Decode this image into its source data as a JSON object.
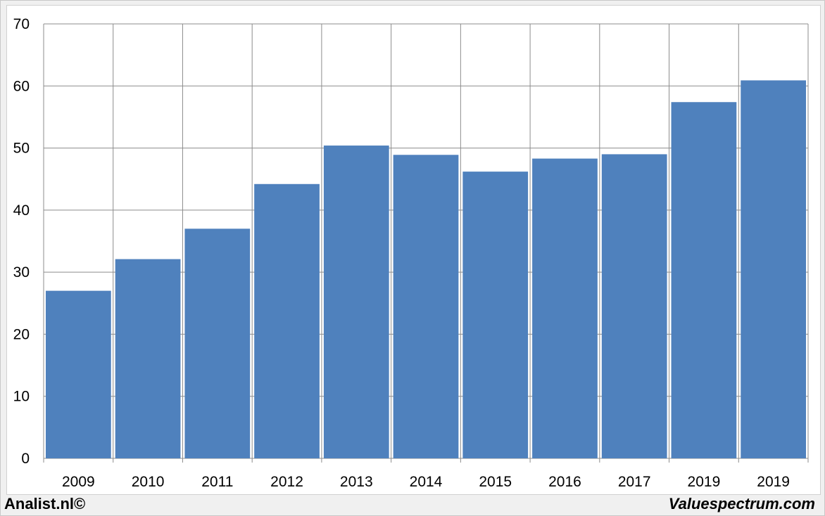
{
  "chart_data": {
    "type": "bar",
    "title": "",
    "xlabel": "",
    "ylabel": "",
    "categories": [
      "2009",
      "2010",
      "2011",
      "2012",
      "2013",
      "2014",
      "2015",
      "2016",
      "2017",
      "2019",
      "2019"
    ],
    "values": [
      27,
      32.1,
      37,
      44.2,
      50.4,
      48.9,
      46.2,
      48.3,
      49,
      57.4,
      60.9
    ],
    "ylim": [
      0,
      70
    ],
    "yticks": [
      0,
      10,
      20,
      30,
      40,
      50,
      60,
      70
    ],
    "grid": true,
    "bar_color": "#4f81bd"
  },
  "footer": {
    "left": "Analist.nl©",
    "right": "Valuespectrum.com"
  }
}
